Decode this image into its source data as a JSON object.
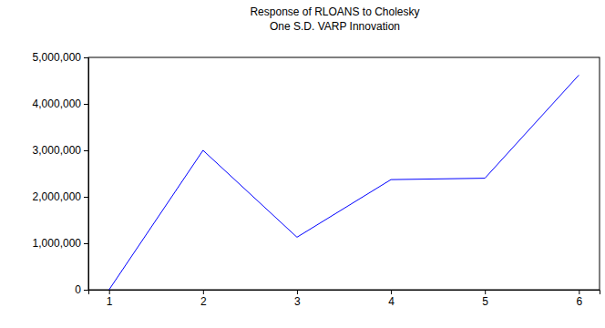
{
  "chart_data": {
    "type": "line",
    "title": "Response of RLOANS to Cholesky",
    "subtitle": "One S.D. VARP Innovation",
    "categories": [
      "1",
      "2",
      "3",
      "4",
      "5",
      "6"
    ],
    "values": [
      0,
      3000000,
      1130000,
      2370000,
      2400000,
      4620000
    ],
    "color": "#0000ff",
    "ylim": [
      0,
      5000000
    ],
    "yticks": [
      0,
      {
        "value": 1000000,
        "label": "1,000,000"
      },
      {
        "value": 2000000,
        "label": "2,000,000"
      },
      {
        "value": 3000000,
        "label": "3,000,000"
      },
      {
        "value": 4000000,
        "label": "4,000,000"
      },
      {
        "value": 5000000,
        "label": "5,000,000"
      }
    ],
    "grid": false
  }
}
